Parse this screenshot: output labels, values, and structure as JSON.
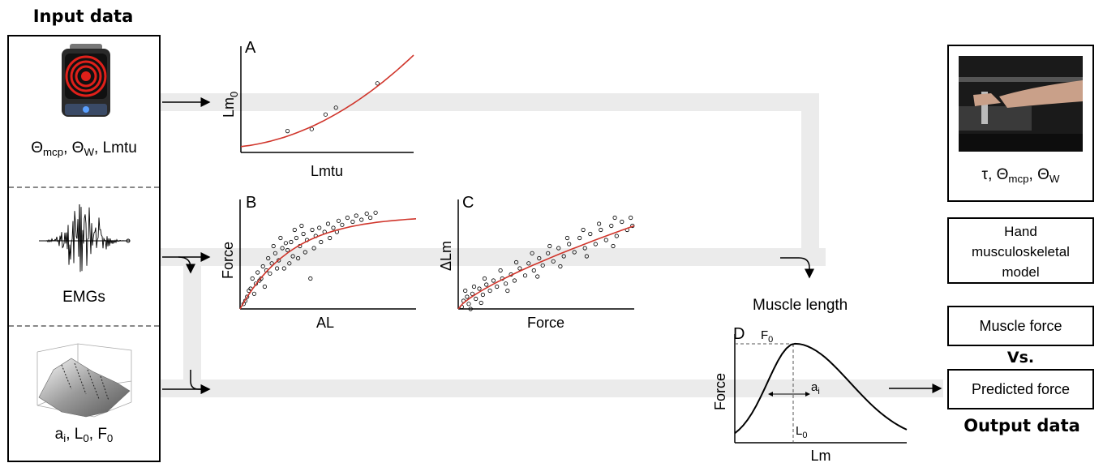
{
  "input": {
    "title": "Input data",
    "panel1": {
      "theta": "Θ",
      "mcp": "mcp",
      "w": "W",
      "lmtu": "Lmtu"
    },
    "panel2": {
      "label": "EMGs"
    },
    "panel3": {
      "a": "a",
      "i": "i",
      "L": "L",
      "l0": "0",
      "F": "F",
      "f0": "0"
    }
  },
  "output": {
    "title": "Output data",
    "photo_label": {
      "tau": "τ",
      "theta": "Θ",
      "mcp": "mcp",
      "w": "W"
    },
    "model_box": [
      "Hand",
      "musculoskeletal",
      "model"
    ],
    "muscle_force": "Muscle force",
    "vs": "Vs.",
    "predicted_force": "Predicted force"
  },
  "muscle_length": "Muscle length",
  "chart_data": [
    {
      "type": "scatter",
      "panel": "A",
      "xlabel": "Lmtu",
      "ylabel_main": "Lm",
      "ylabel_sub": "0",
      "points": [
        [
          0.27,
          0.22
        ],
        [
          0.41,
          0.24
        ],
        [
          0.49,
          0.39
        ],
        [
          0.55,
          0.46
        ],
        [
          0.79,
          0.71
        ]
      ],
      "fit": [
        [
          0,
          0.06
        ],
        [
          0.2,
          0.16
        ],
        [
          0.4,
          0.28
        ],
        [
          0.6,
          0.46
        ],
        [
          0.8,
          0.72
        ],
        [
          1,
          1
        ]
      ]
    },
    {
      "type": "scatter",
      "panel": "B",
      "xlabel": "AL",
      "ylabel": "Force",
      "fit_shape": "saturating",
      "points": [
        [
          0.02,
          0.05
        ],
        [
          0.04,
          0.12
        ],
        [
          0.06,
          0.2
        ],
        [
          0.07,
          0.3
        ],
        [
          0.09,
          0.25
        ],
        [
          0.1,
          0.36
        ],
        [
          0.12,
          0.3
        ],
        [
          0.13,
          0.42
        ],
        [
          0.15,
          0.38
        ],
        [
          0.16,
          0.5
        ],
        [
          0.18,
          0.45
        ],
        [
          0.2,
          0.55
        ],
        [
          0.22,
          0.48
        ],
        [
          0.24,
          0.6
        ],
        [
          0.25,
          0.4
        ],
        [
          0.27,
          0.58
        ],
        [
          0.29,
          0.66
        ],
        [
          0.3,
          0.52
        ],
        [
          0.32,
          0.7
        ],
        [
          0.34,
          0.62
        ],
        [
          0.36,
          0.74
        ],
        [
          0.38,
          0.68
        ],
        [
          0.4,
          0.3
        ],
        [
          0.41,
          0.78
        ],
        [
          0.43,
          0.72
        ],
        [
          0.45,
          0.8
        ],
        [
          0.48,
          0.76
        ],
        [
          0.5,
          0.84
        ],
        [
          0.53,
          0.8
        ],
        [
          0.56,
          0.87
        ],
        [
          0.58,
          0.83
        ],
        [
          0.61,
          0.9
        ],
        [
          0.64,
          0.86
        ],
        [
          0.66,
          0.92
        ],
        [
          0.69,
          0.88
        ],
        [
          0.72,
          0.94
        ],
        [
          0.74,
          0.9
        ],
        [
          0.77,
          0.95
        ],
        [
          0.03,
          0.08
        ],
        [
          0.05,
          0.18
        ],
        [
          0.08,
          0.15
        ],
        [
          0.11,
          0.28
        ],
        [
          0.14,
          0.22
        ],
        [
          0.17,
          0.35
        ],
        [
          0.19,
          0.62
        ],
        [
          0.21,
          0.4
        ],
        [
          0.23,
          0.7
        ],
        [
          0.26,
          0.65
        ],
        [
          0.28,
          0.45
        ],
        [
          0.31,
          0.78
        ],
        [
          0.33,
          0.5
        ],
        [
          0.35,
          0.82
        ],
        [
          0.37,
          0.56
        ],
        [
          0.42,
          0.6
        ],
        [
          0.46,
          0.66
        ],
        [
          0.51,
          0.7
        ],
        [
          0.55,
          0.76
        ]
      ]
    },
    {
      "type": "scatter",
      "panel": "C",
      "xlabel": "Force",
      "ylabel": "ΔLm",
      "fit_shape": "sublinear",
      "points": [
        [
          0.02,
          0.02
        ],
        [
          0.03,
          0.08
        ],
        [
          0.05,
          0.12
        ],
        [
          0.06,
          0.05
        ],
        [
          0.08,
          0.15
        ],
        [
          0.1,
          0.1
        ],
        [
          0.12,
          0.2
        ],
        [
          0.14,
          0.14
        ],
        [
          0.16,
          0.24
        ],
        [
          0.18,
          0.18
        ],
        [
          0.2,
          0.28
        ],
        [
          0.22,
          0.22
        ],
        [
          0.25,
          0.3
        ],
        [
          0.27,
          0.25
        ],
        [
          0.3,
          0.34
        ],
        [
          0.32,
          0.28
        ],
        [
          0.35,
          0.4
        ],
        [
          0.38,
          0.33
        ],
        [
          0.4,
          0.45
        ],
        [
          0.43,
          0.38
        ],
        [
          0.46,
          0.5
        ],
        [
          0.48,
          0.43
        ],
        [
          0.51,
          0.55
        ],
        [
          0.54,
          0.47
        ],
        [
          0.57,
          0.6
        ],
        [
          0.6,
          0.52
        ],
        [
          0.63,
          0.64
        ],
        [
          0.66,
          0.56
        ],
        [
          0.69,
          0.7
        ],
        [
          0.72,
          0.6
        ],
        [
          0.75,
          0.74
        ],
        [
          0.78,
          0.64
        ],
        [
          0.81,
          0.78
        ],
        [
          0.84,
          0.68
        ],
        [
          0.87,
          0.82
        ],
        [
          0.9,
          0.72
        ],
        [
          0.93,
          0.86
        ],
        [
          0.96,
          0.78
        ],
        [
          0.98,
          0.9
        ],
        [
          0.99,
          0.82
        ],
        [
          0.04,
          0.18
        ],
        [
          0.09,
          0.22
        ],
        [
          0.15,
          0.3
        ],
        [
          0.24,
          0.38
        ],
        [
          0.33,
          0.46
        ],
        [
          0.42,
          0.55
        ],
        [
          0.52,
          0.62
        ],
        [
          0.62,
          0.7
        ],
        [
          0.71,
          0.78
        ],
        [
          0.8,
          0.84
        ],
        [
          0.89,
          0.9
        ],
        [
          0.07,
          0.0
        ],
        [
          0.13,
          0.06
        ],
        [
          0.28,
          0.18
        ],
        [
          0.45,
          0.32
        ],
        [
          0.58,
          0.42
        ],
        [
          0.73,
          0.52
        ],
        [
          0.88,
          0.62
        ]
      ]
    },
    {
      "type": "line",
      "panel": "D",
      "xlabel": "Lm",
      "ylabel": "Force",
      "peak_label": {
        "main": "F",
        "sub": "0"
      },
      "opt_label": {
        "main": "L",
        "sub": "0"
      },
      "width_label": {
        "main": "a",
        "sub": "i"
      },
      "shape": "skewed-bell"
    }
  ],
  "colors": {
    "fit": "#d0352b",
    "flow": "#e8e8e8",
    "photo_bg": "#1a1a1a",
    "device_red": "#e0201a"
  }
}
